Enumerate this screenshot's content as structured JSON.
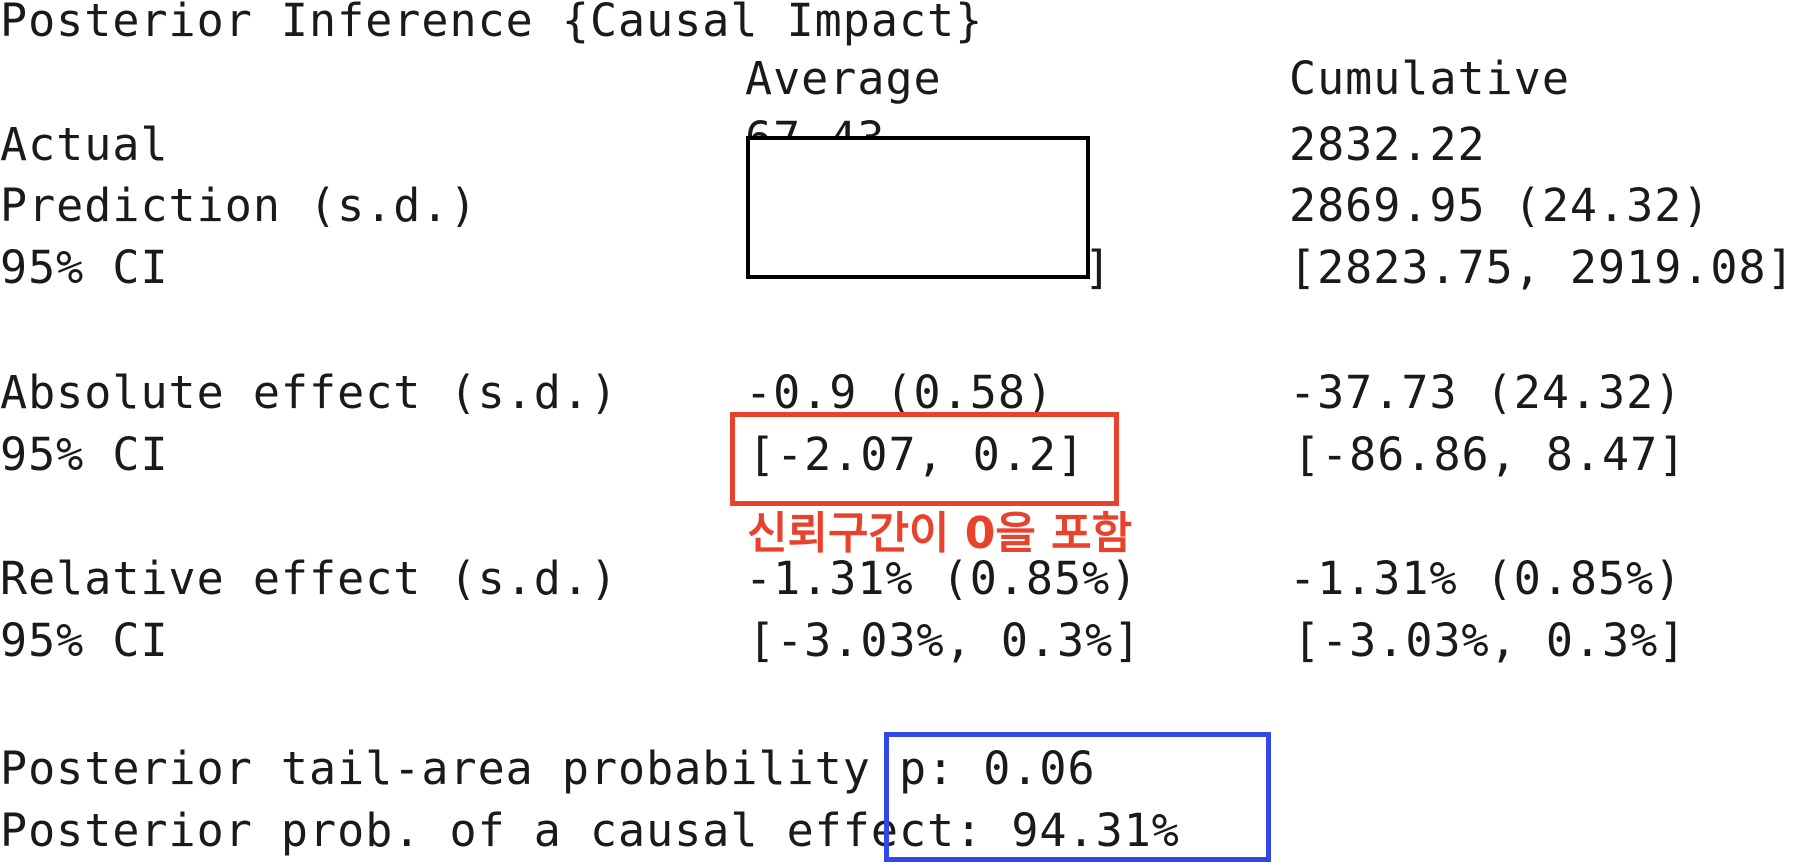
{
  "title": "Posterior Inference {Causal Impact}",
  "columns": {
    "average": "Average",
    "cumulative": "Cumulative"
  },
  "rows": {
    "actual": {
      "label": "Actual",
      "average": "67.43",
      "cumulative": "2832.22"
    },
    "prediction": {
      "label": "Prediction (s.d.)",
      "cumulative": "2869.95 (24.32)"
    },
    "prediction_ci": {
      "label": "95% CI",
      "average_tail": "]",
      "cumulative": "[2823.75, 2919.08]"
    },
    "absolute_effect": {
      "label": "Absolute effect (s.d.)",
      "average": "-0.9 (0.58)",
      "cumulative": "-37.73 (24.32)"
    },
    "absolute_ci": {
      "label": "95% CI",
      "average": "[-2.07, 0.2]",
      "cumulative": "[-86.86, 8.47]"
    },
    "relative_effect": {
      "label": "Relative effect (s.d.)",
      "average": "-1.31% (0.85%)",
      "cumulative": "-1.31% (0.85%)"
    },
    "relative_ci": {
      "label": "95% CI",
      "average": "[-3.03%, 0.3%]",
      "cumulative": "[-3.03%, 0.3%]"
    }
  },
  "tail_probability": "Posterior tail-area probability p: 0.06",
  "causal_effect_prob": "Posterior prob. of a causal effect: 94.31%",
  "annotation": "신뢰구간이 0을 포함",
  "colors": {
    "text": "#1a1a1a",
    "annotation_red": "#e8412c",
    "highlight_blue": "#3048e8",
    "mask_border": "#000000"
  }
}
